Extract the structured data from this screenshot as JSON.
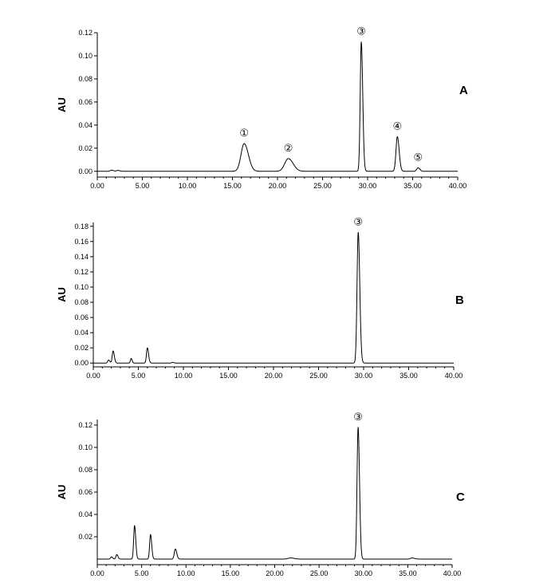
{
  "chart_data": [
    {
      "type": "line",
      "panel_label": "A",
      "ylabel": "AU",
      "xlim": [
        0,
        40
      ],
      "ylim": [
        -0.005,
        0.12
      ],
      "x_ticks": [
        "0.00",
        "5.00",
        "10.00",
        "15.00",
        "20.00",
        "25.00",
        "30.00",
        "35.00",
        "40.00"
      ],
      "y_ticks": [
        "0.00",
        "0.02",
        "0.04",
        "0.06",
        "0.08",
        "0.10",
        "0.12"
      ],
      "baseline": 0.0,
      "peaks": [
        {
          "label": "①",
          "x": 16.3,
          "y": 0.024,
          "w": 0.35
        },
        {
          "label": "②",
          "x": 21.2,
          "y": 0.011,
          "w": 0.4
        },
        {
          "label": "③",
          "x": 29.3,
          "y": 0.112,
          "w": 0.12
        },
        {
          "label": "④",
          "x": 33.3,
          "y": 0.03,
          "w": 0.15
        },
        {
          "label": "⑤",
          "x": 35.6,
          "y": 0.003,
          "w": 0.15
        }
      ],
      "minor_peaks": [
        {
          "x": 1.6,
          "y": 0.001,
          "w": 0.15
        },
        {
          "x": 2.3,
          "y": 0.0008,
          "w": 0.15
        }
      ]
    },
    {
      "type": "line",
      "panel_label": "B",
      "ylabel": "AU",
      "xlim": [
        0,
        40
      ],
      "ylim": [
        -0.005,
        0.185
      ],
      "x_ticks": [
        "0.00",
        "5.00",
        "10.00",
        "15.00",
        "20.00",
        "25.00",
        "30.00",
        "35.00",
        "40.00"
      ],
      "y_ticks": [
        "0.00",
        "0.02",
        "0.04",
        "0.06",
        "0.08",
        "0.10",
        "0.12",
        "0.14",
        "0.16",
        "0.18"
      ],
      "baseline": 0.0,
      "peaks": [
        {
          "label": "③",
          "x": 29.4,
          "y": 0.172,
          "w": 0.13
        }
      ],
      "minor_peaks": [
        {
          "x": 1.7,
          "y": 0.004,
          "w": 0.1
        },
        {
          "x": 2.2,
          "y": 0.016,
          "w": 0.1
        },
        {
          "x": 4.2,
          "y": 0.006,
          "w": 0.08
        },
        {
          "x": 6.0,
          "y": 0.02,
          "w": 0.1
        },
        {
          "x": 8.8,
          "y": 0.001,
          "w": 0.1
        }
      ]
    },
    {
      "type": "line",
      "panel_label": "C",
      "ylabel": "AU",
      "xlim": [
        0,
        40
      ],
      "ylim": [
        -0.005,
        0.125
      ],
      "x_ticks": [
        "0.00",
        "5.00",
        "10.00",
        "15.00",
        "20.00",
        "25.00",
        "30.00",
        "35.00",
        "40.00"
      ],
      "y_ticks": [
        "0.02",
        "0.04",
        "0.06",
        "0.08",
        "0.10",
        "0.12"
      ],
      "baseline": 0.0,
      "peaks": [
        {
          "label": "③",
          "x": 29.4,
          "y": 0.118,
          "w": 0.12
        }
      ],
      "minor_peaks": [
        {
          "x": 1.6,
          "y": 0.002,
          "w": 0.1
        },
        {
          "x": 2.2,
          "y": 0.004,
          "w": 0.1
        },
        {
          "x": 4.2,
          "y": 0.03,
          "w": 0.1
        },
        {
          "x": 6.0,
          "y": 0.022,
          "w": 0.1
        },
        {
          "x": 8.8,
          "y": 0.009,
          "w": 0.12
        },
        {
          "x": 21.8,
          "y": 0.001,
          "w": 0.3
        },
        {
          "x": 35.5,
          "y": 0.001,
          "w": 0.2
        }
      ]
    }
  ]
}
